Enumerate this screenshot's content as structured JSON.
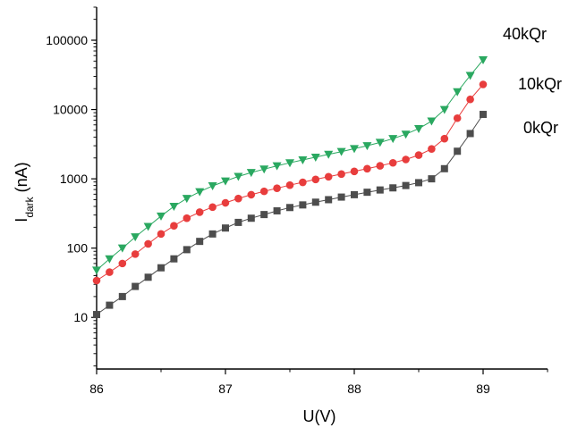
{
  "chart_data": {
    "type": "scatter",
    "xlabel": "U(V)",
    "ylabel_main": "I",
    "ylabel_sub": "dark",
    "ylabel_unit": " (nA)",
    "xlim": [
      86,
      89.5
    ],
    "ylim": [
      1.8,
      300000
    ],
    "yscale": "log",
    "grid": false,
    "x_ticks": [
      "86",
      "87",
      "88",
      "89"
    ],
    "y_ticks": [
      "10",
      "100",
      "1000",
      "10000",
      "100000"
    ],
    "x": [
      86.0,
      86.1,
      86.2,
      86.3,
      86.4,
      86.5,
      86.6,
      86.7,
      86.8,
      86.9,
      87.0,
      87.1,
      87.2,
      87.3,
      87.4,
      87.5,
      87.6,
      87.7,
      87.8,
      87.9,
      88.0,
      88.1,
      88.2,
      88.3,
      88.4,
      88.5,
      88.6,
      88.7,
      88.8,
      88.9,
      89.0
    ],
    "series": [
      {
        "name": "0kQr",
        "color": "#4d4d4d",
        "marker": "square",
        "values": [
          11,
          15,
          20,
          28,
          38,
          52,
          70,
          95,
          125,
          160,
          195,
          235,
          270,
          305,
          345,
          385,
          420,
          460,
          500,
          545,
          590,
          640,
          690,
          740,
          800,
          880,
          1000,
          1400,
          2500,
          4500,
          8500
        ]
      },
      {
        "name": "10kQr",
        "color": "#e83d3d",
        "marker": "circle",
        "values": [
          34,
          45,
          60,
          82,
          115,
          160,
          210,
          270,
          330,
          390,
          450,
          520,
          590,
          660,
          730,
          810,
          890,
          980,
          1070,
          1170,
          1280,
          1400,
          1540,
          1700,
          1900,
          2200,
          2700,
          3800,
          7500,
          14000,
          23000
        ]
      },
      {
        "name": "40kQr",
        "color": "#2aa860",
        "marker": "triangle-down",
        "values": [
          48,
          70,
          100,
          145,
          205,
          290,
          400,
          520,
          650,
          790,
          930,
          1080,
          1230,
          1380,
          1540,
          1700,
          1870,
          2050,
          2250,
          2470,
          2720,
          3000,
          3350,
          3800,
          4400,
          5300,
          6800,
          10000,
          18000,
          31000,
          52000
        ]
      }
    ]
  }
}
